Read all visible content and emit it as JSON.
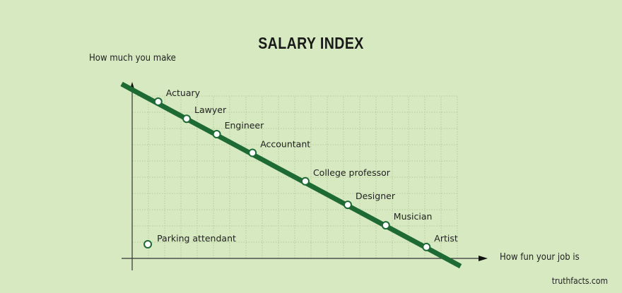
{
  "chart_data": {
    "type": "scatter",
    "title": "SALARY INDEX",
    "xlabel": "How fun your job is",
    "ylabel": "How much you make",
    "xlim": [
      0,
      20
    ],
    "ylim": [
      0,
      10
    ],
    "grid": true,
    "points": [
      {
        "label": "Actuary",
        "x": 1.6,
        "y": 9.65
      },
      {
        "label": "Lawyer",
        "x": 3.35,
        "y": 8.6
      },
      {
        "label": "Engineer",
        "x": 5.2,
        "y": 7.65
      },
      {
        "label": "Accountant",
        "x": 7.4,
        "y": 6.5
      },
      {
        "label": "College professor",
        "x": 10.65,
        "y": 4.75
      },
      {
        "label": "Designer",
        "x": 13.26,
        "y": 3.3
      },
      {
        "label": "Musician",
        "x": 15.6,
        "y": 2.04
      },
      {
        "label": "Artist",
        "x": 18.1,
        "y": 0.7
      },
      {
        "label": "Parking attendant",
        "x": 0.96,
        "y": 0.87
      }
    ],
    "trend_line": {
      "start": [
        -0.65,
        10.74
      ],
      "end": [
        20.2,
        -0.48
      ]
    },
    "colors": {
      "line": "#1e6a34",
      "background": "#d6e9c0",
      "grid": "#b5cc9c",
      "point_fill": "#ffffff"
    }
  },
  "credit": "truthfacts.com"
}
